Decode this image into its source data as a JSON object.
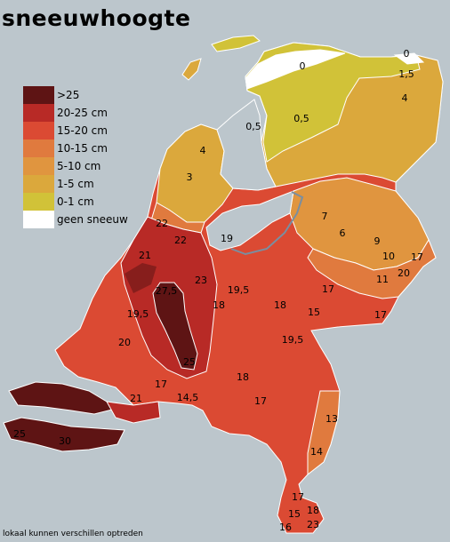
{
  "title": "sneeuwhoogte",
  "footnote": "lokaal kunnen verschillen optreden",
  "legend": [
    {
      "label": ">25",
      "color": "#5e1414"
    },
    {
      "label": "20-25 cm",
      "color": "#b82a26"
    },
    {
      "label": "15-20 cm",
      "color": "#db4a33"
    },
    {
      "label": "10-15 cm",
      "color": "#e07a3e"
    },
    {
      "label": "5-10 cm",
      "color": "#e0953f"
    },
    {
      "label": "1-5 cm",
      "color": "#dba83c"
    },
    {
      "label": "0-1 cm",
      "color": "#d1c238"
    },
    {
      "label": "geen sneeuw",
      "color": "#ffffff"
    }
  ],
  "colors": {
    "sea": "#bcc6cc",
    "border": "#ffffff",
    "water": "#7a8ea0"
  },
  "values": [
    "0",
    "0",
    "1,5",
    "4",
    "0,5",
    "0,5",
    "4",
    "3",
    "22",
    "22",
    "19",
    "7",
    "6",
    "9",
    "10",
    "17",
    "21",
    "27,5",
    "23",
    "19,5",
    "18",
    "18",
    "15",
    "17",
    "11",
    "20",
    "17",
    "19,5",
    "20",
    "19,5",
    "25",
    "18",
    "17",
    "21",
    "17",
    "14,5",
    "13",
    "14",
    "25",
    "30",
    "17",
    "15",
    "18",
    "23",
    "16"
  ]
}
